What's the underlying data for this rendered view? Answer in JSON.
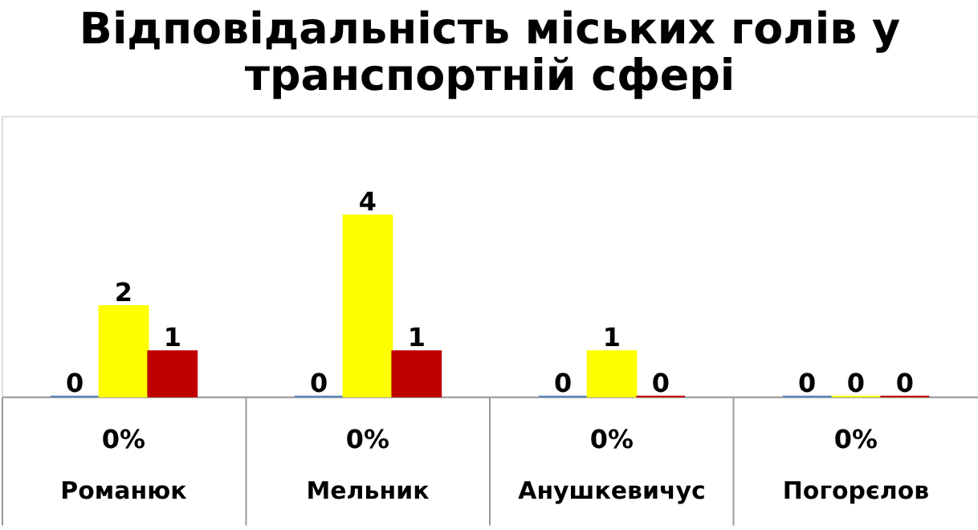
{
  "chart_data": {
    "type": "bar",
    "title": "Відповідальність міських голів у\nтранспортній сфері",
    "categories": [
      "Романюк",
      "Мельник",
      "Анушкевичус",
      "Погорєлов"
    ],
    "series": [
      {
        "color": "#4f81bd",
        "values": [
          0,
          0,
          0,
          0
        ]
      },
      {
        "color": "#ffff00",
        "values": [
          2,
          4,
          1,
          0
        ]
      },
      {
        "color": "#c00000",
        "values": [
          1,
          1,
          0,
          0
        ]
      }
    ],
    "data_labels": true,
    "grid": false,
    "legend": false,
    "annotations": [
      "0%",
      "0%",
      "0%",
      "0%"
    ]
  }
}
